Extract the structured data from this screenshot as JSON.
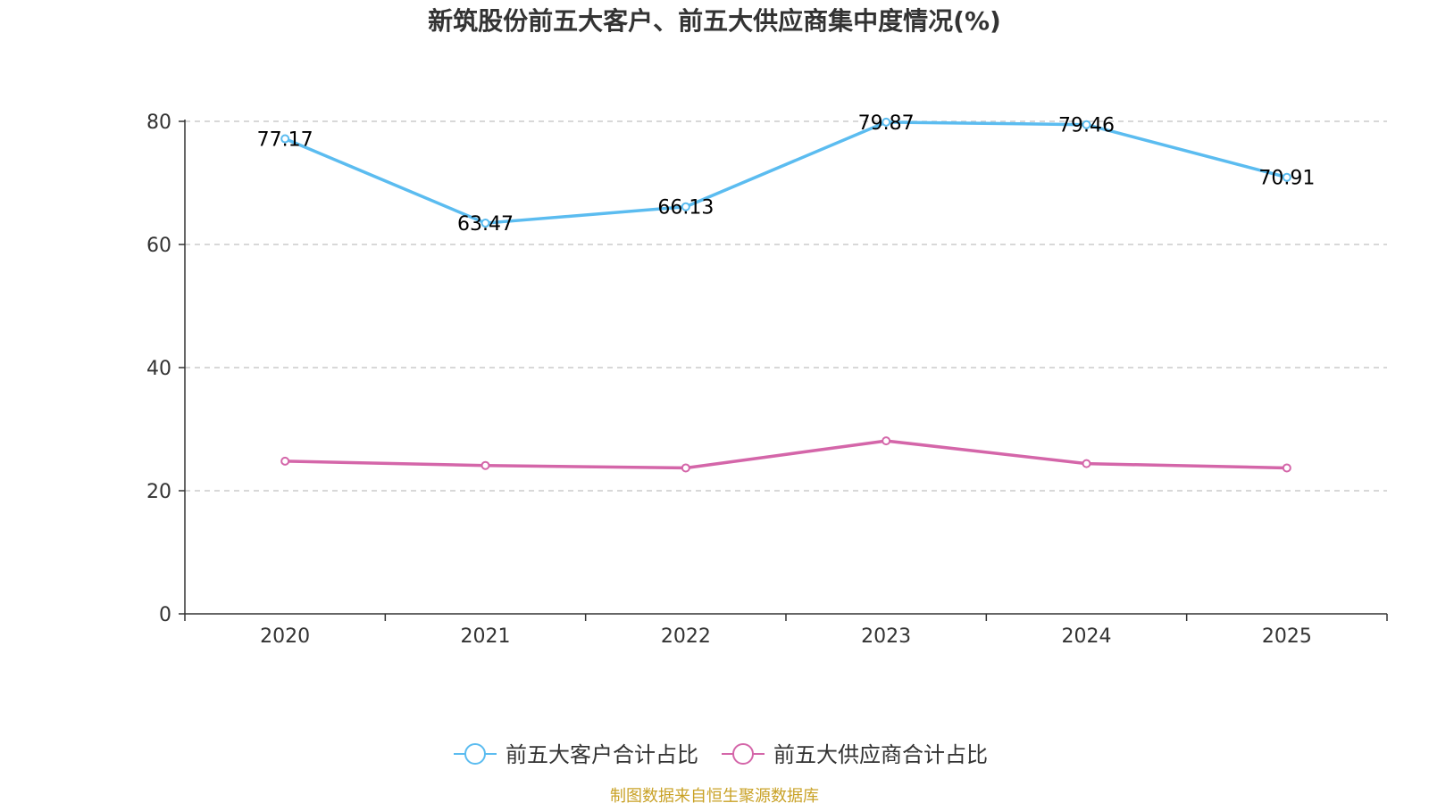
{
  "chart_data": {
    "type": "line",
    "title": "新筑股份前五大客户、前五大供应商集中度情况(%)",
    "categories": [
      "2020",
      "2021",
      "2022",
      "2023",
      "2024",
      "2025"
    ],
    "ylim": [
      0,
      80
    ],
    "yticks": [
      0,
      20,
      40,
      60,
      80
    ],
    "grid": "horizontal-dashed",
    "legend_position": "bottom-center",
    "series": [
      {
        "name": "前五大客户合计占比",
        "color": "#5bbcf0",
        "values": [
          77.17,
          63.47,
          66.13,
          79.87,
          79.46,
          70.91
        ],
        "labels": [
          "77.17",
          "63.47",
          "66.13",
          "79.87",
          "79.46",
          "70.91"
        ],
        "show_labels": true
      },
      {
        "name": "前五大供应商合计占比",
        "color": "#d466a9",
        "values": [
          24.8,
          24.1,
          23.7,
          28.1,
          24.4,
          23.7
        ],
        "show_labels": false
      }
    ]
  },
  "source_note": "制图数据来自恒生聚源数据库"
}
